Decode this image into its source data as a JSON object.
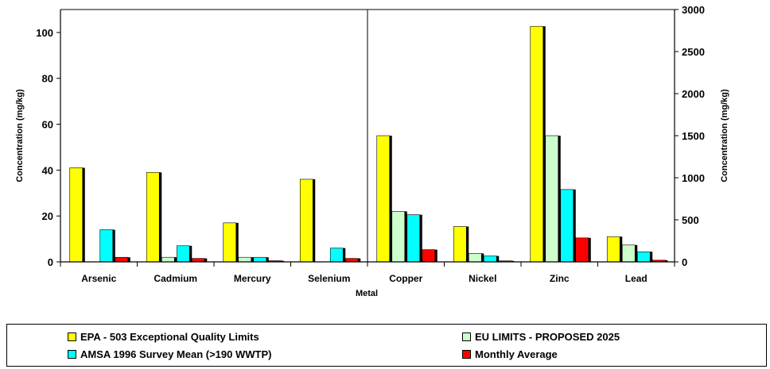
{
  "chart_data": {
    "type": "bar",
    "xlabel": "Metal",
    "ylabel_left": "Concentration (mg/kg)",
    "ylabel_right": "Concentration (mg/kg)",
    "left_axis": {
      "range": [
        0,
        110
      ],
      "ticks": [
        "0",
        "20",
        "40",
        "60",
        "80",
        "100"
      ],
      "categories": [
        "Arsenic",
        "Cadmium",
        "Mercury",
        "Selenium"
      ]
    },
    "right_axis": {
      "range": [
        0,
        3000
      ],
      "ticks": [
        "0",
        "500",
        "1000",
        "1500",
        "2000",
        "2500",
        "3000"
      ],
      "categories": [
        "Copper",
        "Nickel",
        "Zinc",
        "Lead"
      ]
    },
    "categories": [
      "Arsenic",
      "Cadmium",
      "Mercury",
      "Selenium",
      "Copper",
      "Nickel",
      "Zinc",
      "Lead"
    ],
    "series": [
      {
        "name": "EPA - 503 Exceptional Quality Limits",
        "color": "#ffff00",
        "values": [
          41,
          39,
          17,
          36,
          1500,
          420,
          2800,
          300
        ]
      },
      {
        "name": "EU LIMITS - PROPOSED 2025",
        "color": "#ccffcc",
        "values": [
          0,
          2,
          2,
          0,
          600,
          100,
          1500,
          200
        ]
      },
      {
        "name": "AMSA 1996 Survey Mean (>190 WWTP)",
        "color": "#00ffff",
        "values": [
          14,
          7,
          2,
          6,
          560,
          70,
          860,
          120
        ]
      },
      {
        "name": "Monthly Average",
        "color": "#ff0000",
        "values": [
          2,
          1.5,
          0.5,
          1.5,
          145,
          12,
          285,
          20
        ]
      }
    ],
    "legend_position": "bottom",
    "grid": false
  }
}
